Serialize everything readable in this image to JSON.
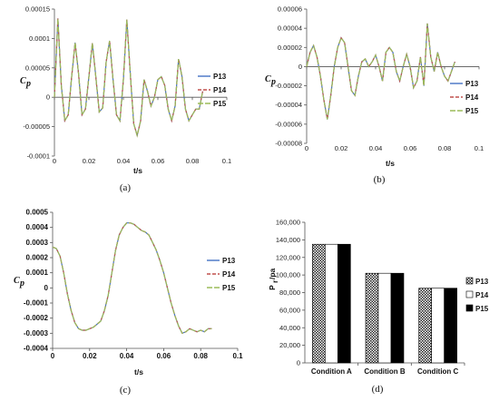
{
  "chart_data": [
    {
      "id": "a",
      "type": "line",
      "caption": "(a)",
      "xlabel": "t/s",
      "ylabel": "C",
      "ylabel_sub": "p",
      "xlim": [
        0,
        0.1
      ],
      "ylim": [
        -0.0001,
        0.00015
      ],
      "xticks": [
        "0",
        "0.02",
        "0.04",
        "0.06",
        "0.08",
        "0.1"
      ],
      "yticks": [
        "-0.0001",
        "-0.00005",
        "0",
        "0.00005",
        "0.0001",
        "0.00015"
      ],
      "legend": [
        "P13",
        "P14",
        "P15"
      ],
      "colors": [
        "#4472C4",
        "#C0504D",
        "#9BBB59"
      ],
      "x": [
        0.0,
        0.002,
        0.004,
        0.006,
        0.008,
        0.01,
        0.012,
        0.014,
        0.016,
        0.018,
        0.02,
        0.022,
        0.024,
        0.026,
        0.028,
        0.03,
        0.032,
        0.034,
        0.036,
        0.038,
        0.04,
        0.042,
        0.044,
        0.046,
        0.048,
        0.05,
        0.052,
        0.054,
        0.056,
        0.058,
        0.06,
        0.062,
        0.064,
        0.066,
        0.068,
        0.07,
        0.072,
        0.074,
        0.076,
        0.078,
        0.08,
        0.082,
        0.084,
        0.086
      ],
      "y": [
        0.0,
        0.000134,
        2e-05,
        -4e-05,
        -3e-05,
        3.5e-05,
        9.3e-05,
        4e-05,
        -3e-05,
        -2e-05,
        3.5e-05,
        9.2e-05,
        3.5e-05,
        -2.5e-05,
        -1.8e-05,
        6e-05,
        9.6e-05,
        3e-05,
        -3e-05,
        -4e-05,
        3e-05,
        0.000132,
        4e-05,
        -4.5e-05,
        -6.5e-05,
        -4e-05,
        3e-05,
        1e-05,
        -1.5e-05,
        0.0,
        3e-05,
        3.5e-05,
        2e-05,
        -2e-05,
        -4e-05,
        -1.5e-05,
        6.5e-05,
        3.5e-05,
        -2e-05,
        -4e-05,
        -3e-05,
        -2e-05,
        -2e-05,
        1e-05
      ]
    },
    {
      "id": "b",
      "type": "line",
      "caption": "(b)",
      "xlabel": "t/s",
      "ylabel": "C",
      "ylabel_sub": "p",
      "xlim": [
        0,
        0.1
      ],
      "ylim": [
        -8e-05,
        6e-05
      ],
      "xticks": [
        "0",
        "0.02",
        "0.04",
        "0.06",
        "0.08",
        "0.1"
      ],
      "yticks": [
        "-0.00008",
        "-0.00006",
        "-0.00004",
        "-0.00002",
        "0",
        "0.00002",
        "0.00004",
        "0.00006"
      ],
      "legend": [
        "P13",
        "P14",
        "P15"
      ],
      "colors": [
        "#4472C4",
        "#C0504D",
        "#9BBB59"
      ],
      "x": [
        0.0,
        0.002,
        0.004,
        0.006,
        0.008,
        0.01,
        0.012,
        0.014,
        0.016,
        0.018,
        0.02,
        0.022,
        0.024,
        0.026,
        0.028,
        0.03,
        0.032,
        0.034,
        0.036,
        0.038,
        0.04,
        0.042,
        0.044,
        0.046,
        0.048,
        0.05,
        0.052,
        0.054,
        0.056,
        0.058,
        0.06,
        0.062,
        0.064,
        0.066,
        0.068,
        0.07,
        0.072,
        0.074,
        0.076,
        0.078,
        0.08,
        0.082,
        0.084,
        0.086
      ],
      "y": [
        0.0,
        1.5e-05,
        2.2e-05,
        1e-05,
        -1e-05,
        -3.5e-05,
        -5.5e-05,
        -3e-05,
        0.0,
        2e-05,
        3e-05,
        2.5e-05,
        0.0,
        -2.5e-05,
        -3e-05,
        -1e-05,
        5e-06,
        8e-06,
        0.0,
        5e-06,
        1.2e-05,
        0.0,
        -1.5e-05,
        1.5e-05,
        2e-05,
        1.5e-05,
        -5e-06,
        -1.5e-05,
        0.0,
        1.3e-05,
        0.0,
        -2.2e-05,
        -1.5e-05,
        1e-05,
        -2e-05,
        4.5e-05,
        1e-05,
        -5e-06,
        1.5e-05,
        0.0,
        -1e-05,
        -1.5e-05,
        -5e-06,
        5e-06
      ]
    },
    {
      "id": "c",
      "type": "line",
      "caption": "(c)",
      "xlabel": "t/s",
      "ylabel": "C",
      "ylabel_sub": "p",
      "xlim": [
        0,
        0.1
      ],
      "ylim": [
        -0.0004,
        0.0005
      ],
      "xticks": [
        "0",
        "0.02",
        "0.04",
        "0.06",
        "0.08",
        "0.1"
      ],
      "yticks": [
        "-0.0004",
        "-0.0003",
        "-0.0002",
        "-0.0001",
        "0",
        "0.0001",
        "0.0002",
        "0.0003",
        "0.0004",
        "0.0005"
      ],
      "legend": [
        "P13",
        "P14",
        "P15"
      ],
      "colors": [
        "#4472C4",
        "#C0504D",
        "#9BBB59"
      ],
      "x": [
        0.0,
        0.002,
        0.004,
        0.006,
        0.008,
        0.01,
        0.012,
        0.014,
        0.016,
        0.018,
        0.02,
        0.022,
        0.024,
        0.026,
        0.028,
        0.03,
        0.032,
        0.034,
        0.036,
        0.038,
        0.04,
        0.042,
        0.044,
        0.046,
        0.048,
        0.05,
        0.052,
        0.054,
        0.056,
        0.058,
        0.06,
        0.062,
        0.064,
        0.066,
        0.068,
        0.07,
        0.072,
        0.074,
        0.076,
        0.078,
        0.08,
        0.082,
        0.084,
        0.086
      ],
      "y": [
        0.00027,
        0.00026,
        0.00021,
        0.0001,
        -4e-05,
        -0.00015,
        -0.00023,
        -0.00027,
        -0.00028,
        -0.00028,
        -0.00027,
        -0.00026,
        -0.00024,
        -0.00022,
        -0.00015,
        -5e-05,
        0.0001,
        0.00025,
        0.00035,
        0.0004,
        0.00043,
        0.00043,
        0.00042,
        0.0004,
        0.00038,
        0.00037,
        0.00035,
        0.0003,
        0.00025,
        0.00018,
        0.0001,
        0.0,
        -0.0001,
        -0.00018,
        -0.00025,
        -0.0003,
        -0.00029,
        -0.00027,
        -0.00028,
        -0.00029,
        -0.00028,
        -0.00029,
        -0.00027,
        -0.00027
      ]
    },
    {
      "id": "d",
      "type": "bar",
      "caption": "(d)",
      "ylabel": "P",
      "ylabel_sub": "r",
      "ylabel_unit": "/pa",
      "ylim": [
        0,
        160000
      ],
      "yticks": [
        "0",
        "20,000",
        "40,000",
        "60,000",
        "80,000",
        "100,000",
        "120,000",
        "140,000",
        "160,000"
      ],
      "categories": [
        "Condition A",
        "Condition B",
        "Condition C"
      ],
      "legend": [
        "P13",
        "P14",
        "P15"
      ],
      "series": [
        {
          "name": "P13",
          "pattern": "checker",
          "values": [
            135000,
            102000,
            85000
          ]
        },
        {
          "name": "P14",
          "pattern": "white",
          "values": [
            135000,
            102000,
            85000
          ]
        },
        {
          "name": "P15",
          "pattern": "black",
          "values": [
            135000,
            102000,
            85000
          ]
        }
      ]
    }
  ]
}
